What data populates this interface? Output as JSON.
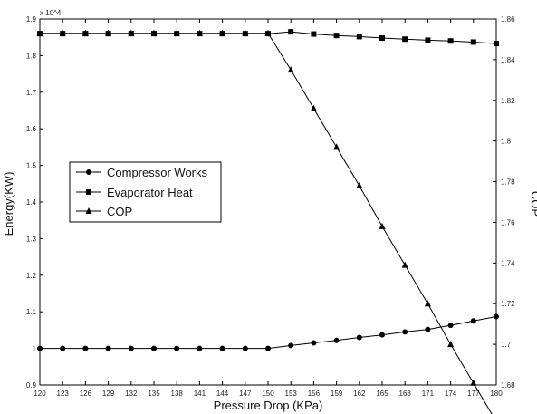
{
  "chart_data": {
    "type": "line",
    "title": "",
    "xlabel": "Pressure Drop (KPa)",
    "ylabel_left": "Energy(KW)",
    "ylabel_right": "COP",
    "left_axis_multiplier": "x 10^4",
    "x": [
      120,
      123,
      126,
      129,
      132,
      135,
      138,
      141,
      144,
      147,
      150,
      153,
      156,
      159,
      162,
      165,
      168,
      171,
      174,
      177,
      180
    ],
    "x_tick_labels": [
      "120",
      "123",
      "126",
      "129",
      "132",
      "135",
      "138",
      "141",
      "144",
      "147",
      "150",
      "153",
      "156",
      "159",
      "162",
      "165",
      "168",
      "171",
      "174",
      "177",
      "180"
    ],
    "xlim": [
      120,
      180
    ],
    "ylim_left": [
      0.9,
      1.9
    ],
    "y_left_ticks": [
      0.9,
      1.0,
      1.1,
      1.2,
      1.3,
      1.4,
      1.5,
      1.6,
      1.7,
      1.8,
      1.9
    ],
    "y_left_tick_labels": [
      "0.9",
      "1",
      "1.1",
      "1.2",
      "1.3",
      "1.4",
      "1.5",
      "1.6",
      "1.7",
      "1.8",
      "1.9"
    ],
    "ylim_right": [
      1.68,
      1.86
    ],
    "y_right_ticks": [
      1.68,
      1.7,
      1.72,
      1.74,
      1.76,
      1.78,
      1.8,
      1.82,
      1.84,
      1.86
    ],
    "y_right_tick_labels": [
      "1.68",
      "1.7",
      "1.72",
      "1.74",
      "1.76",
      "1.78",
      "1.8",
      "1.82",
      "1.84",
      "1.86"
    ],
    "grid": false,
    "legend_placement": "center-left",
    "series": [
      {
        "name": "Compressor Works",
        "axis": "left",
        "marker": "circle",
        "color": "#000000",
        "values": [
          1.0,
          1.0,
          1.0,
          1.0,
          1.0,
          1.0,
          1.0,
          1.0,
          1.0,
          1.0,
          1.0,
          1.008,
          1.015,
          1.022,
          1.03,
          1.037,
          1.045,
          1.052,
          1.063,
          1.075,
          1.087
        ]
      },
      {
        "name": "Evaporator Heat",
        "axis": "left",
        "marker": "square",
        "color": "#000000",
        "values": [
          1.86,
          1.86,
          1.86,
          1.86,
          1.86,
          1.86,
          1.86,
          1.86,
          1.86,
          1.86,
          1.86,
          1.865,
          1.859,
          1.855,
          1.852,
          1.848,
          1.845,
          1.842,
          1.84,
          1.837,
          1.833
        ]
      },
      {
        "name": "COP",
        "axis": "right",
        "marker": "triangle",
        "color": "#000000",
        "values": [
          1.853,
          1.853,
          1.853,
          1.853,
          1.853,
          1.853,
          1.853,
          1.853,
          1.853,
          1.853,
          1.853,
          1.835,
          1.816,
          1.797,
          1.778,
          1.758,
          1.739,
          1.72,
          1.7,
          1.681,
          1.662
        ]
      }
    ]
  }
}
